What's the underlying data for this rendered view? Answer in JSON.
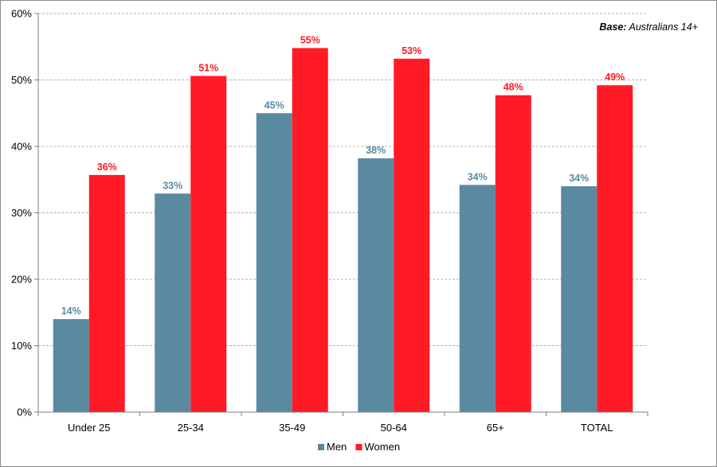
{
  "chart_data": {
    "type": "bar",
    "categories": [
      "Under 25",
      "25-34",
      "35-49",
      "50-64",
      "65+",
      "TOTAL"
    ],
    "series": [
      {
        "name": "Men",
        "color": "#5a8aa0",
        "values": [
          14,
          33,
          45,
          38,
          34,
          34
        ]
      },
      {
        "name": "Women",
        "color": "#ff1a25",
        "values": [
          36,
          51,
          55,
          53,
          48,
          49
        ]
      }
    ],
    "plotted_values": {
      "Men": [
        14.0,
        32.9,
        45.0,
        38.2,
        34.2,
        34.0
      ],
      "Women": [
        35.7,
        50.6,
        54.8,
        53.2,
        47.7,
        49.2
      ]
    },
    "y_ticks": [
      "0%",
      "10%",
      "20%",
      "30%",
      "40%",
      "50%",
      "60%"
    ],
    "ylim": [
      0,
      60
    ],
    "y_format": "percent",
    "grid": "horizontal-dashed",
    "legend_position": "bottom-center",
    "xlabel": "",
    "ylabel": "",
    "note": {
      "bold": "Base:",
      "text": " Australians 14+"
    }
  }
}
